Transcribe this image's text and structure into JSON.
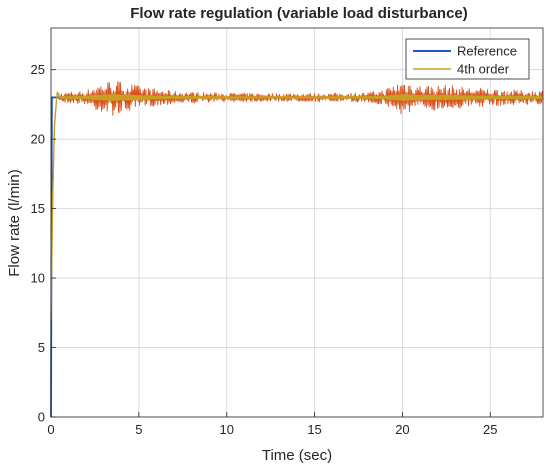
{
  "chart_data": {
    "type": "line",
    "title": "Flow rate regulation (variable load disturbance)",
    "xlabel": "Time (sec)",
    "ylabel": "Flow rate (l/min)",
    "xlim": [
      0,
      28
    ],
    "ylim": [
      0,
      28
    ],
    "xticks": [
      0,
      5,
      10,
      15,
      20,
      25
    ],
    "yticks": [
      0,
      5,
      10,
      15,
      20,
      25
    ],
    "xtick_labels": [
      "0",
      "5",
      "10",
      "15",
      "20",
      "25"
    ],
    "ytick_labels": [
      "0",
      "5",
      "10",
      "15",
      "20",
      "25"
    ],
    "grid": true,
    "legend_position": "top-right",
    "series": [
      {
        "name": "Reference",
        "color": "#2255c4",
        "x": [
          0,
          0.05,
          28
        ],
        "y": [
          0,
          23,
          23
        ]
      },
      {
        "name": "4th order",
        "color": "#c8a020",
        "oscillation_color": "#d9531e",
        "x": [
          0,
          0.1,
          0.2,
          0.35,
          0.5,
          1,
          2,
          2.5,
          3.5,
          4.5,
          5.5,
          7,
          9,
          12,
          15,
          18,
          19,
          20,
          21,
          22.5,
          24,
          25.5,
          27,
          28
        ],
        "y": [
          7,
          16,
          21,
          23.4,
          23,
          23,
          23,
          23,
          23,
          23,
          23,
          23,
          23,
          23,
          23,
          23,
          23,
          23,
          23,
          23,
          23,
          23,
          23,
          23
        ],
        "oscillation_amplitude": [
          0,
          0,
          0,
          0,
          0.3,
          0.4,
          0.5,
          0.9,
          1.3,
          1.0,
          0.7,
          0.45,
          0.35,
          0.3,
          0.3,
          0.35,
          0.6,
          1.3,
          0.9,
          0.9,
          0.7,
          0.6,
          0.5,
          0.5
        ]
      }
    ]
  }
}
